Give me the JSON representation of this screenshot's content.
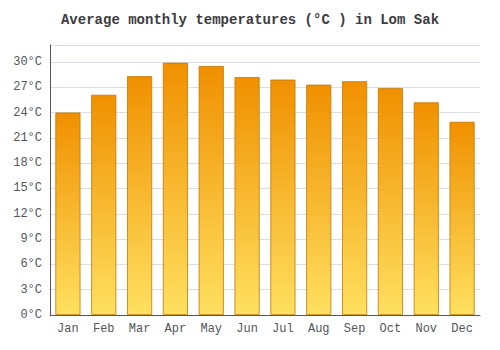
{
  "chart_data": {
    "type": "bar",
    "title": "Average monthly temperatures (°C ) in Lom Sak",
    "categories": [
      "Jan",
      "Feb",
      "Mar",
      "Apr",
      "May",
      "Jun",
      "Jul",
      "Aug",
      "Sep",
      "Oct",
      "Nov",
      "Dec"
    ],
    "values": [
      24.0,
      26.1,
      28.3,
      29.9,
      29.5,
      28.2,
      27.9,
      27.3,
      27.7,
      26.9,
      25.2,
      22.9
    ],
    "color": "#F09000",
    "ylim": [
      0,
      32
    ],
    "yticks": [
      {
        "value": 0,
        "label": "0°C"
      },
      {
        "value": 3,
        "label": "3°C"
      },
      {
        "value": 6,
        "label": "6°C"
      },
      {
        "value": 9,
        "label": "9°C"
      },
      {
        "value": 12,
        "label": "12°C"
      },
      {
        "value": 15,
        "label": "15°C"
      },
      {
        "value": 18,
        "label": "18°C"
      },
      {
        "value": 21,
        "label": "21°C"
      },
      {
        "value": 24,
        "label": "24°C"
      },
      {
        "value": 27,
        "label": "27°C"
      },
      {
        "value": 30,
        "label": "30°C"
      }
    ],
    "grid": true
  }
}
